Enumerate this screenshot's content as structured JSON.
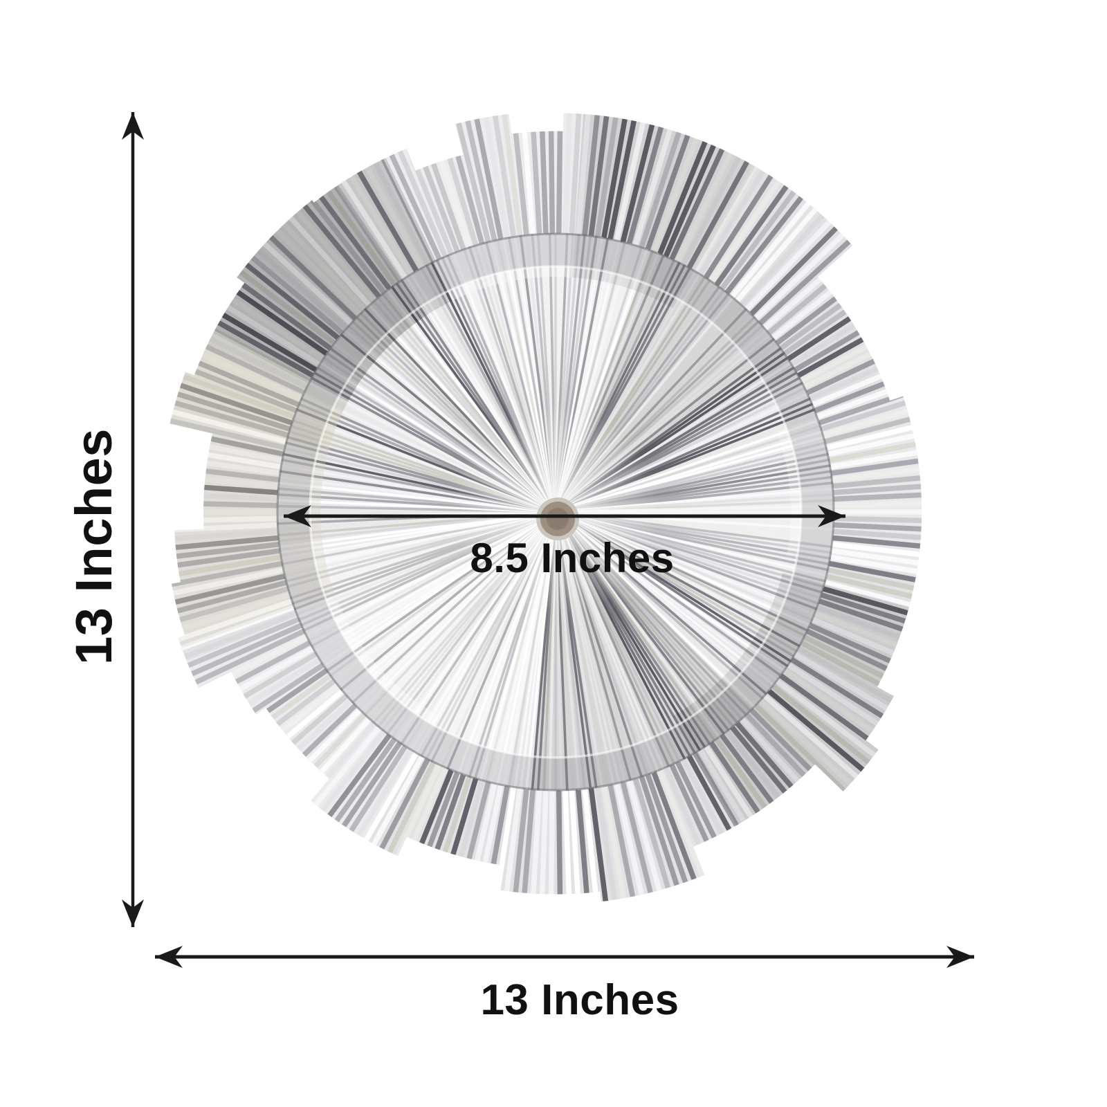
{
  "diagram": {
    "background": "#ffffff"
  },
  "labels": {
    "height": "13 Inches",
    "width": "13 Inches",
    "inner_diameter": "8.5 Inches"
  },
  "measurements": {
    "height_inches": 13,
    "width_inches": 13,
    "inner_diameter_inches": 8.5
  },
  "annotation_style": {
    "arrow_color": "#1a1a1a",
    "text_color": "#111111"
  },
  "plate": {
    "colors": {
      "base": "#e2e2e5",
      "inner_base": "#ebebed",
      "rib_palette": [
        "#ffffff",
        "#f3f3f5",
        "#dadadd",
        "#bdbdc2",
        "#9c9ca2",
        "#7e7e85",
        "#62626a",
        "#e9e9e5",
        "#cfcfc7",
        "#ababaf",
        "#8d8d94",
        "#f9f9fa"
      ],
      "warm_tint": "#d8d2bc",
      "rim_line": "#6e6e76",
      "hub_ring": "#c9c6c0",
      "hub_outer": "#9d8e7f",
      "hub_inner": "#8a7c70"
    }
  }
}
